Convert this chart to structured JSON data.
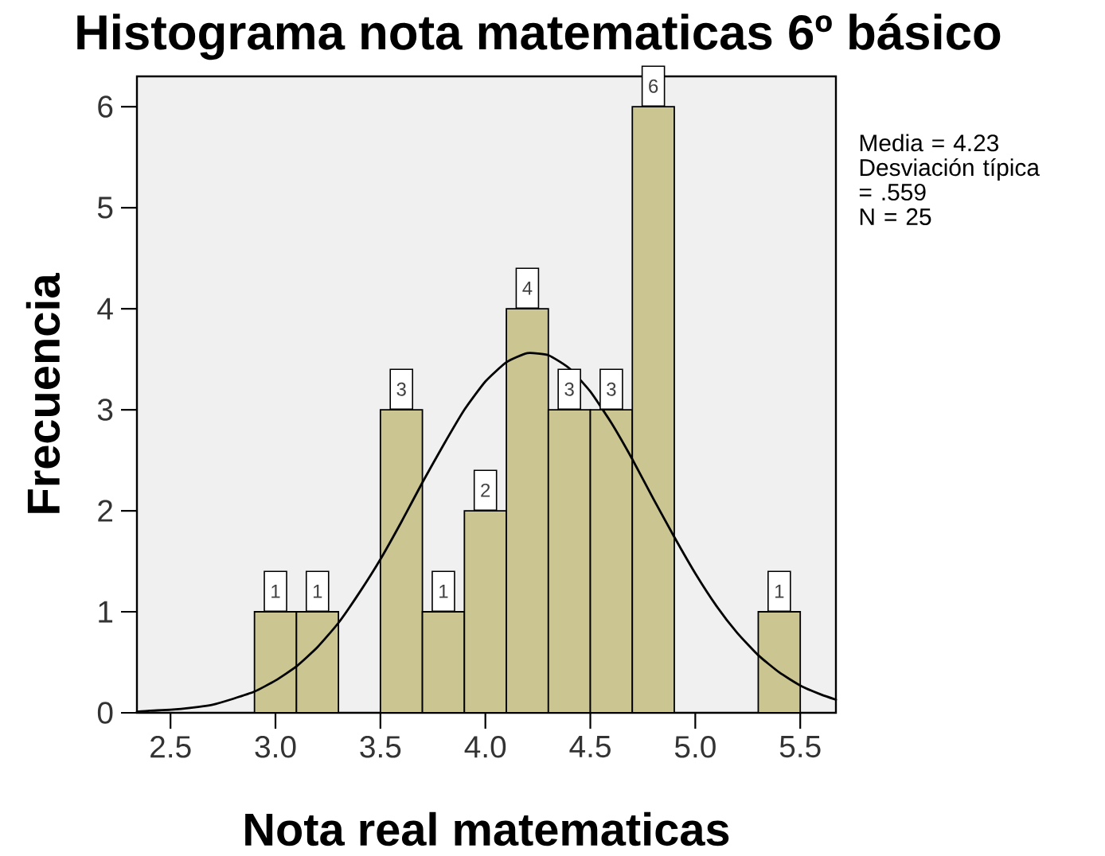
{
  "chart_data": {
    "type": "histogram",
    "title": "Histograma nota matematicas 6º básico",
    "xlabel": "Nota real matematicas",
    "ylabel": "Frecuencia",
    "annotations": [
      "Media = 4.23",
      "Desviación típica = .559",
      "N = 25"
    ],
    "series": [
      {
        "color": "#cbc591",
        "bins": [
          2.9,
          3.1,
          3.3,
          3.5,
          3.7,
          3.9,
          4.1,
          4.3,
          4.5,
          4.7,
          4.9,
          5.1,
          5.3,
          5.5
        ],
        "values": [
          1,
          1,
          0,
          3,
          1,
          2,
          4,
          3,
          3,
          6,
          0,
          0,
          1
        ],
        "value_labels": [
          "1",
          "1",
          null,
          "3",
          "1",
          "2",
          "4",
          "3",
          "3",
          "6",
          null,
          null,
          "1"
        ]
      },
      {
        "type": "line",
        "color": "#000000",
        "x": [
          2.34,
          2.4,
          2.5,
          2.6,
          2.7,
          2.8,
          2.9,
          3.0,
          3.1,
          3.2,
          3.3,
          3.4,
          3.5,
          3.6,
          3.7,
          3.8,
          3.9,
          4.0,
          4.1,
          4.2,
          4.3,
          4.4,
          4.5,
          4.6,
          4.7,
          4.8,
          4.9,
          5.0,
          5.1,
          5.2,
          5.3,
          5.4,
          5.5,
          5.6,
          5.67
        ],
        "values": [
          0.01,
          0.02,
          0.03,
          0.05,
          0.08,
          0.14,
          0.21,
          0.32,
          0.46,
          0.65,
          0.89,
          1.19,
          1.52,
          1.89,
          2.28,
          2.65,
          3.0,
          3.28,
          3.47,
          3.56,
          3.54,
          3.41,
          3.18,
          2.87,
          2.51,
          2.12,
          1.74,
          1.38,
          1.06,
          0.79,
          0.57,
          0.4,
          0.27,
          0.18,
          0.13
        ]
      }
    ],
    "xlim": [
      2.34,
      5.67
    ],
    "ylim": [
      0,
      6.3
    ],
    "xticks": [
      2.5,
      {
        "value": 3,
        "label": "3.0"
      },
      3.5,
      {
        "value": 4,
        "label": "4.0"
      },
      4.5,
      {
        "value": 5,
        "label": "5.0"
      },
      5.5
    ],
    "yticks": [
      0,
      1,
      2,
      3,
      4,
      5,
      6
    ]
  }
}
